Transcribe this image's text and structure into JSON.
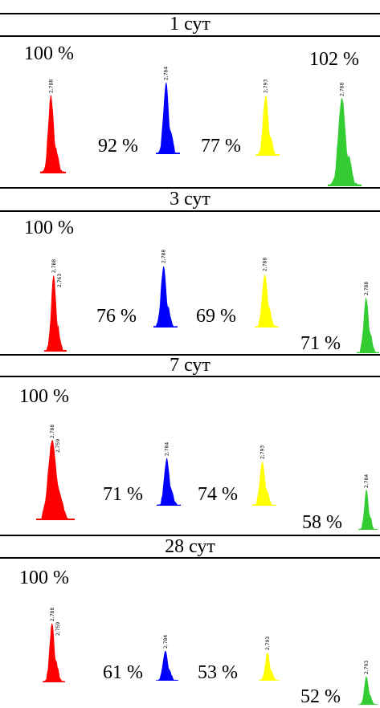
{
  "colors": {
    "red": "#ff0000",
    "blue": "#0000ff",
    "yellow": "#ffff00",
    "green": "#33cc33"
  },
  "panels": [
    {
      "header": "1 сут",
      "peaks": [
        {
          "color": "red",
          "label": "100 %",
          "peak_labels": [
            "2,788"
          ]
        },
        {
          "color": "blue",
          "label": "92 %",
          "peak_labels": [
            "2,784"
          ]
        },
        {
          "color": "yellow",
          "label": "77 %",
          "peak_labels": [
            "2,793"
          ]
        },
        {
          "color": "green",
          "label": "102 %",
          "peak_labels": [
            "2,788"
          ]
        }
      ]
    },
    {
      "header": "3 сут",
      "peaks": [
        {
          "color": "red",
          "label": "100 %",
          "peak_labels": [
            "2,788",
            "2,763"
          ]
        },
        {
          "color": "blue",
          "label": "76 %",
          "peak_labels": [
            "2,788"
          ]
        },
        {
          "color": "yellow",
          "label": "69 %",
          "peak_labels": [
            "2,788"
          ]
        },
        {
          "color": "green",
          "label": "71 %",
          "peak_labels": [
            "2,788"
          ]
        }
      ]
    },
    {
      "header": "7 сут",
      "peaks": [
        {
          "color": "red",
          "label": "100 %",
          "peak_labels": [
            "2,788",
            "2,759"
          ]
        },
        {
          "color": "blue",
          "label": "71 %",
          "peak_labels": [
            "2,784"
          ]
        },
        {
          "color": "yellow",
          "label": "74 %",
          "peak_labels": [
            "2,793"
          ]
        },
        {
          "color": "green",
          "label": "58 %",
          "peak_labels": [
            "2,784"
          ]
        }
      ]
    },
    {
      "header": "28 сут",
      "peaks": [
        {
          "color": "red",
          "label": "100 %",
          "peak_labels": [
            "2,788",
            "2,759"
          ]
        },
        {
          "color": "blue",
          "label": "61 %",
          "peak_labels": [
            "2,784"
          ]
        },
        {
          "color": "yellow",
          "label": "53 %",
          "peak_labels": [
            "2,793"
          ]
        },
        {
          "color": "green",
          "label": "52 %",
          "peak_labels": [
            "2,793"
          ]
        }
      ]
    }
  ]
}
